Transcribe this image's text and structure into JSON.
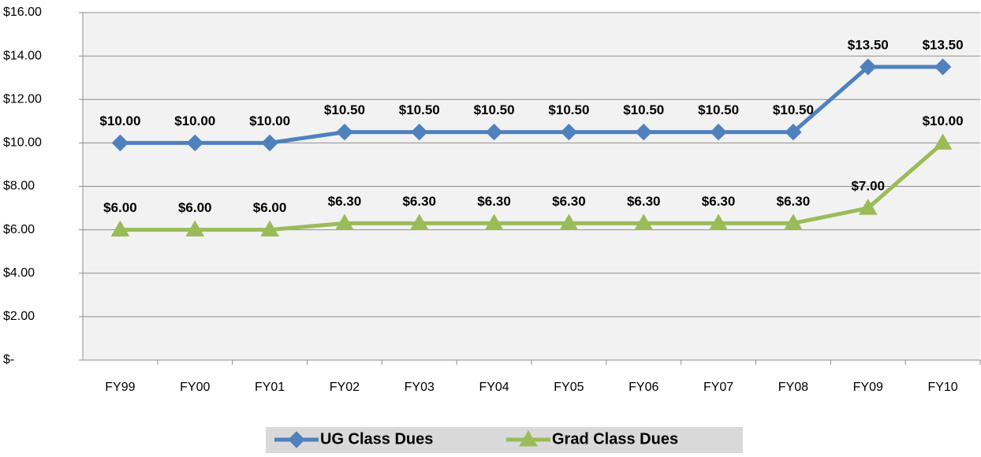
{
  "chart_data": {
    "type": "line",
    "categories": [
      "FY99",
      "FY00",
      "FY01",
      "FY02",
      "FY03",
      "FY04",
      "FY05",
      "FY06",
      "FY07",
      "FY08",
      "FY09",
      "FY10"
    ],
    "series": [
      {
        "name": "UG Class Dues",
        "color": "#4f81bd",
        "marker": "diamond",
        "values": [
          10,
          10,
          10,
          10.5,
          10.5,
          10.5,
          10.5,
          10.5,
          10.5,
          10.5,
          13.5,
          13.5
        ],
        "value_labels": [
          "$10.00",
          "$10.00",
          "$10.00",
          "$10.50",
          "$10.50",
          "$10.50",
          "$10.50",
          "$10.50",
          "$10.50",
          "$10.50",
          "$13.50",
          "$13.50"
        ]
      },
      {
        "name": "Grad Class Dues",
        "color": "#9bbb59",
        "marker": "triangle",
        "values": [
          6,
          6,
          6,
          6.3,
          6.3,
          6.3,
          6.3,
          6.3,
          6.3,
          6.3,
          7,
          10
        ],
        "value_labels": [
          "$6.00",
          "$6.00",
          "$6.00",
          "$6.30",
          "$6.30",
          "$6.30",
          "$6.30",
          "$6.30",
          "$6.30",
          "$6.30",
          "$7.00",
          "$10.00"
        ]
      }
    ],
    "ylim": [
      0,
      16
    ],
    "yticks": [
      {
        "value": 0,
        "label": "$-"
      },
      {
        "value": 2,
        "label": "$2.00"
      },
      {
        "value": 4,
        "label": "$4.00"
      },
      {
        "value": 6,
        "label": "$6.00"
      },
      {
        "value": 8,
        "label": "$8.00"
      },
      {
        "value": 10,
        "label": "$10.00"
      },
      {
        "value": 12,
        "label": "$12.00"
      },
      {
        "value": 14,
        "label": "$14.00"
      },
      {
        "value": 16,
        "label": "$16.00"
      }
    ],
    "grid": true,
    "legend": "bottom"
  }
}
